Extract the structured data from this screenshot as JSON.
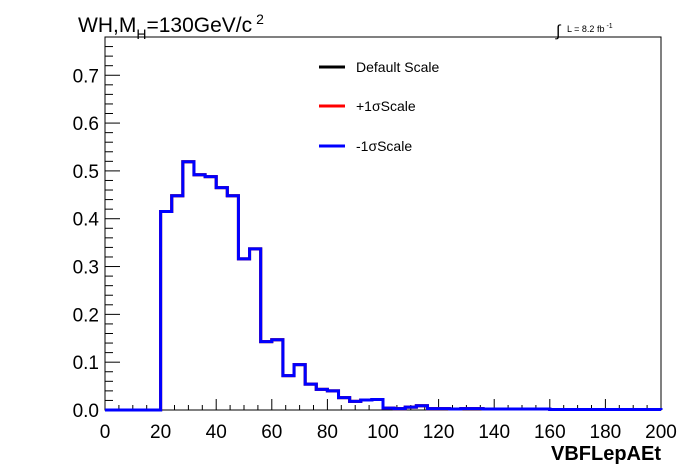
{
  "title": {
    "pre": "WH,M",
    "sub": "H",
    "mid": "=130GeV/c",
    "sup": "2"
  },
  "lumi": {
    "integral_symbol": "∫",
    "text": "L = 8.2 fb",
    "sup": "-1"
  },
  "colors": {
    "default": "#000000",
    "plus": "#ff0000",
    "minus": "#0000ff"
  },
  "chart_data": {
    "type": "line",
    "style": "step-histogram",
    "xlabel": "VBFLepAEt",
    "ylabel": "",
    "xlim": [
      0,
      200
    ],
    "ylim": [
      0,
      0.78
    ],
    "x_ticks": [
      0,
      20,
      40,
      60,
      80,
      100,
      120,
      140,
      160,
      180,
      200
    ],
    "y_ticks": [
      0.0,
      0.1,
      0.2,
      0.3,
      0.4,
      0.5,
      0.6,
      0.7
    ],
    "y_tick_labels": [
      "0.0",
      "0.1",
      "0.2",
      "0.3",
      "0.4",
      "0.5",
      "0.6",
      "0.7"
    ],
    "bin_edges": [
      0,
      4,
      8,
      12,
      16,
      20,
      24,
      28,
      32,
      36,
      40,
      44,
      48,
      52,
      56,
      60,
      64,
      68,
      72,
      76,
      80,
      84,
      88,
      92,
      96,
      100,
      104,
      108,
      112,
      116,
      120,
      124,
      128,
      132,
      136,
      140,
      144,
      148,
      152,
      156,
      160,
      164,
      168,
      172,
      176,
      180,
      184,
      188,
      192,
      196,
      200
    ],
    "legend_position": "top-center",
    "series": [
      {
        "name": "Default Scale",
        "color": "#000000",
        "values": [
          0,
          0,
          0,
          0,
          0,
          0.415,
          0.448,
          0.519,
          0.492,
          0.488,
          0.465,
          0.448,
          0.316,
          0.337,
          0.143,
          0.147,
          0.072,
          0.095,
          0.054,
          0.043,
          0.04,
          0.026,
          0.018,
          0.021,
          0.022,
          0.004,
          0.003,
          0.006,
          0.009,
          0.003,
          0.003,
          0.002,
          0.003,
          0.003,
          0.002,
          0.002,
          0.002,
          0.002,
          0.002,
          0.002,
          0.001,
          0.001,
          0.001,
          0.001,
          0.001,
          0.001,
          0.001,
          0.001,
          0.001,
          0.001
        ]
      },
      {
        "name": "+1σScale",
        "color": "#ff0000",
        "values": [
          0,
          0,
          0,
          0,
          0,
          0.415,
          0.448,
          0.519,
          0.492,
          0.488,
          0.465,
          0.448,
          0.316,
          0.337,
          0.143,
          0.147,
          0.072,
          0.095,
          0.054,
          0.043,
          0.04,
          0.026,
          0.018,
          0.021,
          0.022,
          0.004,
          0.003,
          0.006,
          0.009,
          0.003,
          0.003,
          0.002,
          0.003,
          0.003,
          0.002,
          0.002,
          0.002,
          0.002,
          0.002,
          0.002,
          0.001,
          0.001,
          0.001,
          0.001,
          0.001,
          0.001,
          0.001,
          0.001,
          0.001,
          0.001
        ]
      },
      {
        "name": "-1σScale",
        "color": "#0000ff",
        "values": [
          0,
          0,
          0,
          0,
          0,
          0.415,
          0.448,
          0.519,
          0.492,
          0.488,
          0.465,
          0.448,
          0.316,
          0.337,
          0.143,
          0.147,
          0.072,
          0.095,
          0.054,
          0.043,
          0.04,
          0.026,
          0.018,
          0.021,
          0.022,
          0.004,
          0.003,
          0.006,
          0.009,
          0.003,
          0.003,
          0.002,
          0.003,
          0.003,
          0.002,
          0.002,
          0.002,
          0.002,
          0.002,
          0.002,
          0.001,
          0.001,
          0.001,
          0.001,
          0.001,
          0.001,
          0.001,
          0.001,
          0.001,
          0.001
        ]
      }
    ]
  }
}
